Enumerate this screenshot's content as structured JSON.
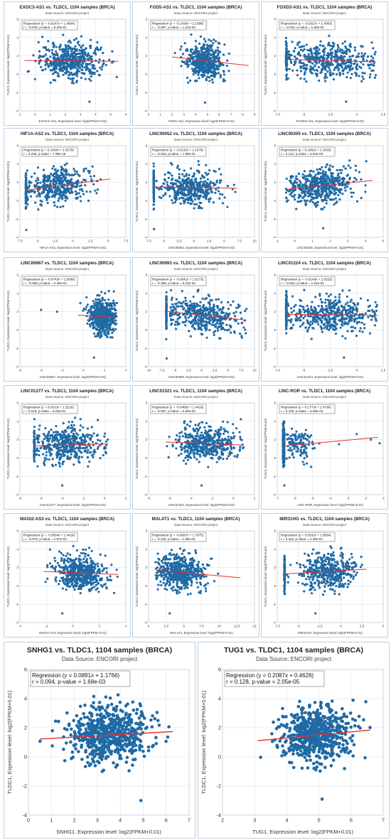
{
  "theme": {
    "point_color": "#1f6aa5",
    "line_color": "#e8302a",
    "grid_color": "#d6dde6",
    "border_color": "#bcd0e4"
  },
  "chart_data": [
    {
      "type": "scatter",
      "title": "EXOC3-AS1 vs. TLDC1, 1104 samples (BRCA)",
      "subtitle": "Data Source: ENCORI project",
      "regression": "Regression (y = -0.0147x + 1.4864)",
      "stats": "r = -0.015, p-value = 6.20e-01",
      "xlabel": "EXOC3-AS1, Expression level: log2(FPKM+0.01)",
      "ylabel": "TLDC1, Expression level: log2(FPKM+0.01)",
      "xlim": [
        -1,
        6
      ],
      "xticks": [
        -1,
        0,
        1,
        2,
        3,
        4,
        5,
        6
      ],
      "ylim": [
        -4,
        6
      ],
      "yticks": [
        -4,
        -2,
        0,
        2,
        4,
        6
      ],
      "slope": -0.0147,
      "intercept": 1.4864,
      "r": -0.015,
      "cloud": {
        "x_mean": 2.4,
        "x_sd": 1.0,
        "x_min": -0.7,
        "x_max": 5.5,
        "n": 520
      },
      "outliers": [
        [
          3.6,
          -3.0
        ]
      ]
    },
    {
      "type": "scatter",
      "title": "FGD5-AS1 vs. TLDC1, 1104 samples (BRCA)",
      "subtitle": "Data Source: ENCORI project",
      "regression": "Regression (y = -0.1430x + 2.1598)",
      "stats": "r = -0.097, p-value = 1.21e-03",
      "xlabel": "FGD5-AS1, Expression level: log2(FPKM+0.01)",
      "ylabel": "TLDC1, Expression level: log2(FPKM+0.01)",
      "xlim": [
        0,
        9
      ],
      "xticks": [
        0,
        1,
        2,
        3,
        4,
        5,
        6,
        7,
        8,
        9
      ],
      "ylim": [
        -4,
        6
      ],
      "yticks": [
        -4,
        -2,
        0,
        2,
        4,
        6
      ],
      "slope": -0.143,
      "intercept": 2.1598,
      "r": -0.097,
      "cloud": {
        "x_mean": 4.8,
        "x_sd": 0.8,
        "x_min": 2.0,
        "x_max": 8.5,
        "n": 520
      },
      "outliers": [
        [
          4.8,
          -3.1
        ]
      ]
    },
    {
      "type": "scatter",
      "title": "FOXD3-AS1 vs. TLDC1, 1104 samples (BRCA)",
      "subtitle": "Data Source: ENCORI project",
      "regression": "Regression (y = -0.0327x + 1.4003)",
      "stats": "r = -0.042, p-value = 1.66e-01",
      "xlabel": "FOXD3-AS1, Expression level: log2(FPKM+0.01)",
      "ylabel": "TLDC1, Expression level: log2(FPKM+0.01)",
      "xlim": [
        -7.5,
        2.5
      ],
      "xticks": [
        -7.5,
        -5,
        -2.5,
        0,
        2.5
      ],
      "ylim": [
        -4,
        6
      ],
      "yticks": [
        -4,
        -2,
        0,
        2,
        4,
        6
      ],
      "slope": -0.0327,
      "intercept": 1.4003,
      "r": -0.042,
      "cloud": {
        "x_mean": -2.5,
        "x_sd": 2.2,
        "x_min": -6.6,
        "x_max": 1.8,
        "n": 460
      },
      "stripe": {
        "x": -6.64,
        "n": 60
      },
      "outliers": [
        [
          -1.0,
          -3.0
        ]
      ]
    },
    {
      "type": "scatter",
      "title": "HIF1A-AS2 vs. TLDC1, 1104 samples (BRCA)",
      "subtitle": "Data Source: ENCORI project",
      "regression": "Regression (y = 0.1034x + 1.8279)",
      "stats": "r = 0.239, p-value = 7.98e-16",
      "xlabel": "HIF1A-AS2, Expression level: log2(FPKM+0.01)",
      "ylabel": "TLDC1, Expression level: log2(FPKM+0.01)",
      "xlim": [
        -7.5,
        7.5
      ],
      "xticks": [
        -7.5,
        -5,
        -2.5,
        0,
        2.5,
        5,
        7.5
      ],
      "ylim": [
        -4,
        6
      ],
      "yticks": [
        -4,
        -2,
        0,
        2,
        4,
        6
      ],
      "slope": 0.1034,
      "intercept": 1.8279,
      "r": 0.239,
      "cloud": {
        "x_mean": -2.2,
        "x_sd": 2.2,
        "x_min": -6.5,
        "x_max": 5.3,
        "n": 420
      },
      "stripe": {
        "x": -6.64,
        "n": 110
      },
      "outliers": [
        [
          -6.6,
          -3.2
        ]
      ]
    },
    {
      "type": "scatter",
      "title": "LINC00052 vs. TLDC1, 1104 samples (BRCA)",
      "subtitle": "Data Source: ENCORI project",
      "regression": "Regression (y = -0.0115x + 1.4278)",
      "stats": "r = -0.044, p-value = 1.39e-01",
      "xlabel": "LINC00052, Expression level: log2(FPKM+0.01)",
      "ylabel": "TLDC1, Expression level: log2(FPKM+0.01)",
      "xlim": [
        -7.5,
        10
      ],
      "xticks": [
        -7.5,
        -5,
        -2.5,
        0,
        2.5,
        5,
        7.5,
        10
      ],
      "ylim": [
        -4,
        6
      ],
      "yticks": [
        -4,
        -2,
        0,
        2,
        4,
        6
      ],
      "slope": -0.0115,
      "intercept": 1.4278,
      "r": -0.044,
      "cloud": {
        "x_mean": -0.5,
        "x_sd": 2.5,
        "x_min": -6.5,
        "x_max": 7.2,
        "n": 420
      },
      "stripe": {
        "x": -6.64,
        "n": 130
      },
      "outliers": [
        [
          -6.6,
          -3.1
        ]
      ]
    },
    {
      "type": "scatter",
      "title": "LINC00205 vs. TLDC1, 1104 samples (BRCA)",
      "subtitle": "Data Source: ENCORI project",
      "regression": "Regression (y = 0.1982x + 1.3419)",
      "stats": "r = 0.121, p-value = 5.52e-05",
      "xlabel": "LINC00205, Expression level: log2(FPKM+0.01)",
      "ylabel": "TLDC1, Expression level: log2(FPKM+0.01)",
      "xlim": [
        -1,
        5
      ],
      "xticks": [
        -1,
        0,
        1,
        2,
        3,
        4,
        5
      ],
      "ylim": [
        -4,
        6
      ],
      "yticks": [
        -4,
        -2,
        0,
        2,
        4,
        6
      ],
      "slope": 0.1982,
      "intercept": 1.3419,
      "r": 0.121,
      "cloud": {
        "x_mean": 1.5,
        "x_sd": 0.9,
        "x_min": -0.5,
        "x_max": 4.4,
        "n": 520
      },
      "outliers": [
        [
          1.6,
          -3.0
        ]
      ]
    },
    {
      "type": "scatter",
      "title": "LINC00667 vs. TLDC1, 1104 samples (BRCA)",
      "subtitle": "Data Source: ENCORI project",
      "regression": "Regression (y = -0.0743x + 1.5938)",
      "stats": "r = -0.068, p-value = 2.46e-02",
      "xlabel": "LINC00667, Expression level: log2(FPKM+0.01)",
      "ylabel": "TLDC1, Expression level: log2(FPKM+0.01)",
      "xlim": [
        -6,
        4
      ],
      "xticks": [
        -6,
        -4,
        -2,
        0,
        2,
        4
      ],
      "ylim": [
        -4,
        6
      ],
      "yticks": [
        -4,
        -2,
        0,
        2,
        4,
        6
      ],
      "slope": -0.0743,
      "intercept": 1.5938,
      "r": -0.068,
      "cloud": {
        "x_mean": 1.8,
        "x_sd": 0.65,
        "x_min": -0.5,
        "x_max": 3.2,
        "n": 540
      },
      "outliers": [
        [
          1.0,
          -3.0
        ],
        [
          -4.0,
          2.2
        ],
        [
          -2.5,
          2.0
        ]
      ]
    },
    {
      "type": "scatter",
      "title": "LINC00993 vs. TLDC1, 1104 samples (BRCA)",
      "subtitle": "Data Source: ENCORI project",
      "regression": "Regression (y = -0.0641x + 1.6173)",
      "stats": "r = -0.358, p-value = 5.23e-34",
      "xlabel": "LINC00993, Expression level: log2(FPKM+0.01)",
      "ylabel": "TLDC1, Expression level: log2(FPKM+0.01)",
      "xlim": [
        -10,
        10
      ],
      "xticks": [
        -10,
        -7.5,
        -5,
        -2.5,
        0,
        2.5,
        5,
        7.5,
        10
      ],
      "ylim": [
        -4,
        6
      ],
      "yticks": [
        -4,
        -2,
        0,
        2,
        4,
        6
      ],
      "slope": -0.0641,
      "intercept": 1.6173,
      "r": -0.358,
      "cloud": {
        "x_mean": 0.5,
        "x_sd": 3.5,
        "x_min": -6.0,
        "x_max": 8.5,
        "n": 440
      },
      "stripe": {
        "x": -6.64,
        "n": 120
      },
      "outliers": [
        [
          -6.6,
          -3.1
        ]
      ]
    },
    {
      "type": "scatter",
      "title": "LINC01224 vs. TLDC1, 1104 samples (BRCA)",
      "subtitle": "Data Source: ENCORI project",
      "regression": "Regression (y = -0.0146x + 1.6215)",
      "stats": "r = -0.042, p-value = 1.61e-01",
      "xlabel": "LINC01224, Expression level: log2(FPKM+0.01)",
      "ylabel": "TLDC1, Expression level: log2(FPKM+0.01)",
      "xlim": [
        -7.5,
        2.5
      ],
      "xticks": [
        -7.5,
        -5,
        -2.5,
        0,
        2.5
      ],
      "ylim": [
        -4,
        6
      ],
      "yticks": [
        -4,
        -2,
        0,
        2,
        4,
        6
      ],
      "slope": -0.0146,
      "intercept": 1.6215,
      "r": -0.042,
      "cloud": {
        "x_mean": -2.5,
        "x_sd": 2.0,
        "x_min": -6.5,
        "x_max": 2.0,
        "n": 440
      },
      "stripe": {
        "x": -6.64,
        "n": 110
      },
      "outliers": [
        [
          -1.2,
          -3.0
        ]
      ]
    },
    {
      "type": "scatter",
      "title": "LINC01277 vs. TLDC1, 1104 samples (BRCA)",
      "subtitle": "Data Source: ENCORI project",
      "regression": "Regression (y = 0.0310x + 1.5218)",
      "stats": "r = 0.016, p-value = 6.02e-01",
      "xlabel": "LINC01277, Expression level: log2(FPKM+0.01)",
      "ylabel": "TLDC1, Expression level: log2(FPKM+0.01)",
      "xlim": [
        -8,
        2
      ],
      "xticks": [
        -8,
        -6,
        -4,
        -2,
        0,
        2
      ],
      "ylim": [
        -4,
        6
      ],
      "yticks": [
        -4,
        -2,
        0,
        2,
        4,
        6
      ],
      "slope": 0.031,
      "intercept": 1.5218,
      "r": 0.016,
      "cloud": {
        "x_mean": -3.5,
        "x_sd": 1.6,
        "x_min": -6.5,
        "x_max": 0.3,
        "n": 460
      },
      "stripe": {
        "x": -6.64,
        "n": 60
      },
      "outliers": [
        [
          -4.0,
          -3.0
        ]
      ]
    },
    {
      "type": "scatter",
      "title": "LINC01521 vs. TLDC1, 1104 samples (BRCA)",
      "subtitle": "Data Source: ENCORI project",
      "regression": "Regression (y = -0.0466x + 1.4418)",
      "stats": "r = -0.057, p-value = 5.89e-02",
      "xlabel": "LINC01521, Expression level: log2(FPKM+0.01)",
      "ylabel": "TLDC1, Expression level: log2(FPKM+0.01)",
      "xlim": [
        -8,
        2
      ],
      "xticks": [
        -8,
        -6,
        -4,
        -2,
        0,
        2
      ],
      "ylim": [
        -4,
        6
      ],
      "yticks": [
        -4,
        -2,
        0,
        2,
        4,
        6
      ],
      "slope": -0.0466,
      "intercept": 1.4418,
      "r": -0.057,
      "cloud": {
        "x_mean": -2.5,
        "x_sd": 1.4,
        "x_min": -6.4,
        "x_max": 1.0,
        "n": 500
      },
      "outliers": [
        [
          -3.0,
          -3.0
        ]
      ]
    },
    {
      "type": "scatter",
      "title": "LINC-ROR vs. TLDC1, 1104 samples (BRCA)",
      "subtitle": "Data Source: ENCORI project",
      "regression": "Regression (y = 0.1770x + 2.4790)",
      "stats": "r = 0.105, p-value = 4.59e-04",
      "xlabel": "LINC-ROR, Expression level: log2(FPKM+0.01)",
      "ylabel": "TLDC1, Expression level: log2(FPKM+0.01)",
      "xlim": [
        -7,
        -1
      ],
      "xticks": [
        -7,
        -6,
        -5,
        -4,
        -3,
        -2,
        -1
      ],
      "ylim": [
        -4,
        6
      ],
      "yticks": [
        -4,
        -2,
        0,
        2,
        4,
        6
      ],
      "slope": 0.177,
      "intercept": 2.479,
      "r": 0.105,
      "cloud": {
        "x_mean": -5.8,
        "x_sd": 0.5,
        "x_min": -6.5,
        "x_max": -1.3,
        "n": 120
      },
      "stripe": {
        "x": -6.64,
        "n": 360
      },
      "outliers": [
        [
          -6.6,
          -3.0
        ],
        [
          -3.5,
          1.5
        ],
        [
          -2.5,
          2.6
        ],
        [
          -1.7,
          2.0
        ],
        [
          -1.2,
          1.6
        ]
      ]
    },
    {
      "type": "scatter",
      "title": "MAGI2-AS3 vs. TLDC1, 1104 samples (BRCA)",
      "subtitle": "Data Source: ENCORI project",
      "regression": "Regression (y = -0.0594x + 1.4418)",
      "stats": "r = -0.076, p-value = 1.97e-02",
      "xlabel": "MAGI2-AS3, Expression level: log2(FPKM+0.01)",
      "ylabel": "TLDC1, Expression level: log2(FPKM+0.01)",
      "xlim": [
        -4,
        4
      ],
      "xticks": [
        -4,
        -2,
        0,
        2,
        4
      ],
      "ylim": [
        -4,
        6
      ],
      "yticks": [
        -4,
        -2,
        0,
        2,
        4,
        6
      ],
      "slope": -0.0594,
      "intercept": 1.4418,
      "r": -0.076,
      "cloud": {
        "x_mean": 0.6,
        "x_sd": 0.9,
        "x_min": -2.2,
        "x_max": 3.4,
        "n": 540
      },
      "outliers": [
        [
          -0.8,
          -3.0
        ]
      ]
    },
    {
      "type": "scatter",
      "title": "MALAT1 vs. TLDC1, 1104 samples (BRCA)",
      "subtitle": "Data Source: ENCORI project",
      "regression": "Regression (y = -0.0697x + 1.7875)",
      "stats": "r = -0.115, p-value = 1.38e-04",
      "xlabel": "MALAT1, Expression level: log2(FPKM+0.01)",
      "ylabel": "TLDC1, Expression level: log2(FPKM+0.01)",
      "xlim": [
        0,
        15
      ],
      "xticks": [
        0,
        2.5,
        5,
        7.5,
        10,
        12.5,
        15
      ],
      "ylim": [
        -4,
        6
      ],
      "yticks": [
        -4,
        -2,
        0,
        2,
        4,
        6
      ],
      "slope": -0.0697,
      "intercept": 1.7875,
      "r": -0.115,
      "cloud": {
        "x_mean": 4.5,
        "x_sd": 1.8,
        "x_min": 1.0,
        "x_max": 13.0,
        "n": 540
      },
      "outliers": [
        [
          3.0,
          -3.0
        ]
      ]
    },
    {
      "type": "scatter",
      "title": "MIR31HG vs. TLDC1, 1104 samples (BRCA)",
      "subtitle": "Data Source: ENCORI project",
      "regression": "Regression (y = 0.0532x + 1.6584)",
      "stats": "r = 0.116, p-value = 1.49e-04",
      "xlabel": "MIR31HG, Expression level: log2(FPKM+0.01)",
      "ylabel": "TLDC1, Expression level: log2(FPKM+0.01)",
      "xlim": [
        -7.5,
        5
      ],
      "xticks": [
        -7.5,
        -5,
        -2.5,
        0,
        2.5,
        5
      ],
      "ylim": [
        -4,
        6
      ],
      "yticks": [
        -4,
        -2,
        0,
        2,
        4,
        6
      ],
      "slope": 0.0532,
      "intercept": 1.6584,
      "r": 0.116,
      "cloud": {
        "x_mean": -1.5,
        "x_sd": 1.7,
        "x_min": -6.5,
        "x_max": 3.0,
        "n": 440
      },
      "stripe": {
        "x": -6.64,
        "n": 100
      },
      "outliers": [
        [
          -3.0,
          -3.0
        ]
      ]
    },
    {
      "type": "scatter",
      "title": "SNHG1 vs. TLDC1, 1104 samples (BRCA)",
      "subtitle": "Data Source: ENCORI project",
      "regression": "Regression (y = 0.0891x + 1.1766)",
      "stats": "r = 0.094, p-value = 1.68e-03",
      "xlabel": "SNHG1, Expression level: log2(FPKM+0.01)",
      "ylabel": "TLDC1, Expression level: log2(FPKM+0.01)",
      "xlim": [
        0,
        7
      ],
      "xticks": [
        0,
        1,
        2,
        3,
        4,
        5,
        6,
        7
      ],
      "ylim": [
        -4,
        6
      ],
      "yticks": [
        -4,
        -2,
        0,
        2,
        4,
        6
      ],
      "slope": 0.0891,
      "intercept": 1.1766,
      "r": 0.094,
      "cloud": {
        "x_mean": 3.5,
        "x_sd": 0.9,
        "x_min": 0.5,
        "x_max": 6.3,
        "n": 620
      },
      "outliers": [
        [
          4.9,
          -3.0
        ]
      ]
    },
    {
      "type": "scatter",
      "title": "TUG1 vs. TLDC1, 1104 samples (BRCA)",
      "subtitle": "Data Source: ENCORI project",
      "regression": "Regression (y = 0.2087x + 0.4626)",
      "stats": "r = 0.128, p-value = 2.05e-05",
      "xlabel": "TUG1, Expression level: log2(FPKM+0.01)",
      "ylabel": "TLDC1, Expression level: log2(FPKM+0.01)",
      "xlim": [
        2,
        7
      ],
      "xticks": [
        2,
        3,
        4,
        5,
        6,
        7
      ],
      "ylim": [
        -4,
        6
      ],
      "yticks": [
        -4,
        -2,
        0,
        2,
        4,
        6
      ],
      "slope": 0.2087,
      "intercept": 0.4626,
      "r": 0.128,
      "cloud": {
        "x_mean": 4.9,
        "x_sd": 0.55,
        "x_min": 3.1,
        "x_max": 6.6,
        "n": 620
      },
      "outliers": [
        [
          5.1,
          -2.9
        ]
      ]
    }
  ]
}
